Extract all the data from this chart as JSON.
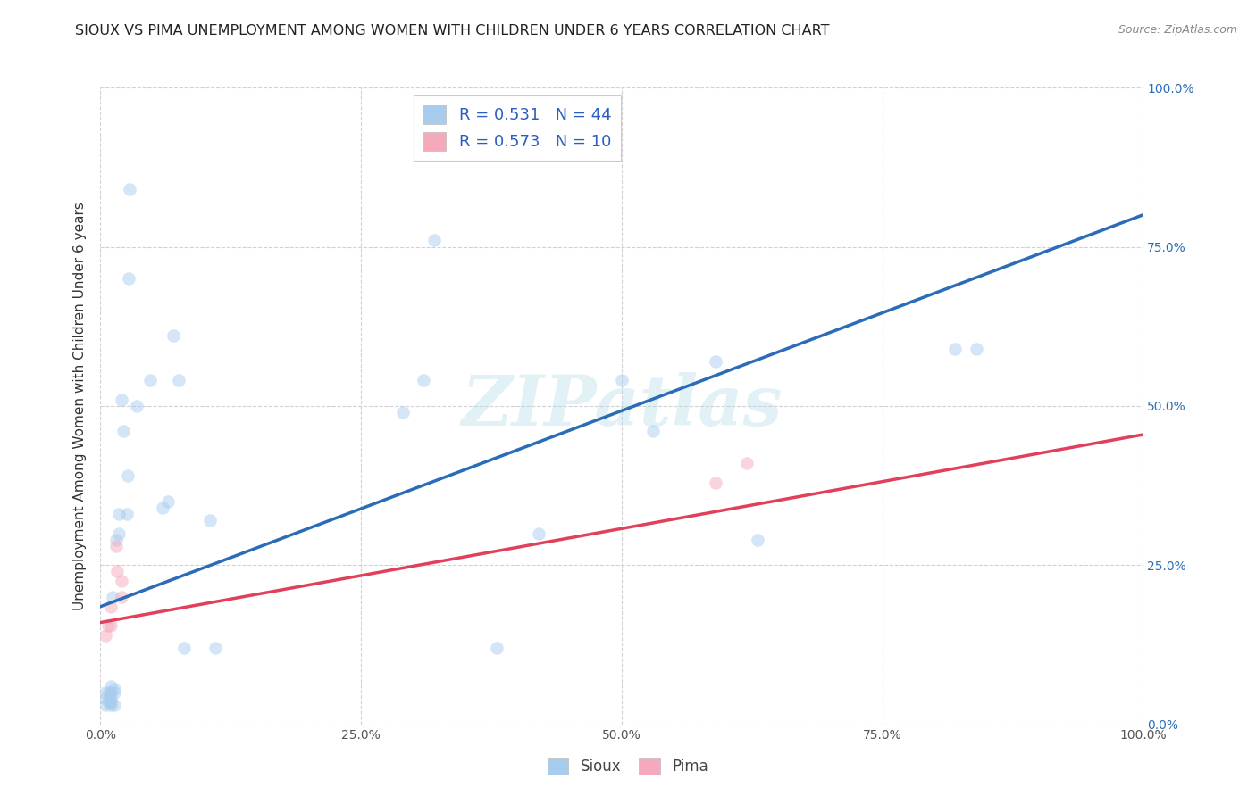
{
  "title": "SIOUX VS PIMA UNEMPLOYMENT AMONG WOMEN WITH CHILDREN UNDER 6 YEARS CORRELATION CHART",
  "source": "Source: ZipAtlas.com",
  "ylabel": "Unemployment Among Women with Children Under 6 years",
  "sioux_R": "0.531",
  "sioux_N": "44",
  "pima_R": "0.573",
  "pima_N": "10",
  "sioux_color": "#A8CCEE",
  "pima_color": "#F5AABB",
  "sioux_line_color": "#2B6CB8",
  "pima_line_color": "#E0405A",
  "legend_sioux": "Sioux",
  "legend_pima": "Pima",
  "sioux_x": [
    0.005,
    0.005,
    0.005,
    0.008,
    0.008,
    0.008,
    0.01,
    0.01,
    0.01,
    0.01,
    0.01,
    0.012,
    0.013,
    0.013,
    0.013,
    0.015,
    0.018,
    0.018,
    0.02,
    0.022,
    0.025,
    0.026,
    0.027,
    0.028,
    0.035,
    0.048,
    0.06,
    0.065,
    0.07,
    0.075,
    0.08,
    0.105,
    0.11,
    0.29,
    0.31,
    0.32,
    0.38,
    0.42,
    0.5,
    0.53,
    0.59,
    0.63,
    0.82,
    0.84
  ],
  "sioux_y": [
    0.03,
    0.04,
    0.05,
    0.035,
    0.04,
    0.05,
    0.03,
    0.035,
    0.04,
    0.05,
    0.06,
    0.2,
    0.03,
    0.05,
    0.055,
    0.29,
    0.3,
    0.33,
    0.51,
    0.46,
    0.33,
    0.39,
    0.7,
    0.84,
    0.5,
    0.54,
    0.34,
    0.35,
    0.61,
    0.54,
    0.12,
    0.32,
    0.12,
    0.49,
    0.54,
    0.76,
    0.12,
    0.3,
    0.54,
    0.46,
    0.57,
    0.29,
    0.59,
    0.59
  ],
  "pima_x": [
    0.005,
    0.007,
    0.01,
    0.01,
    0.015,
    0.016,
    0.02,
    0.02,
    0.59,
    0.62
  ],
  "pima_y": [
    0.14,
    0.155,
    0.155,
    0.185,
    0.28,
    0.24,
    0.2,
    0.225,
    0.38,
    0.41
  ],
  "sioux_line_x0": 0.0,
  "sioux_line_y0": 0.185,
  "sioux_line_x1": 1.0,
  "sioux_line_y1": 0.8,
  "pima_line_x0": 0.0,
  "pima_line_y0": 0.16,
  "pima_line_x1": 1.0,
  "pima_line_y1": 0.455,
  "xlim": [
    0.0,
    1.0
  ],
  "ylim": [
    0.0,
    1.0
  ],
  "xticks": [
    0.0,
    0.25,
    0.5,
    0.75,
    1.0
  ],
  "xticklabels": [
    "0.0%",
    "25.0%",
    "50.0%",
    "75.0%",
    "100.0%"
  ],
  "ytick_positions": [
    0.0,
    0.25,
    0.5,
    0.75,
    1.0
  ],
  "right_yticklabels": [
    "0.0%",
    "25.0%",
    "50.0%",
    "75.0%",
    "100.0%"
  ],
  "watermark": "ZIPatlas",
  "background_color": "#ffffff",
  "grid_color": "#cccccc",
  "marker_size": 110,
  "marker_alpha": 0.5,
  "title_fontsize": 11.5,
  "tick_fontsize": 10,
  "axis_label_fontsize": 11
}
